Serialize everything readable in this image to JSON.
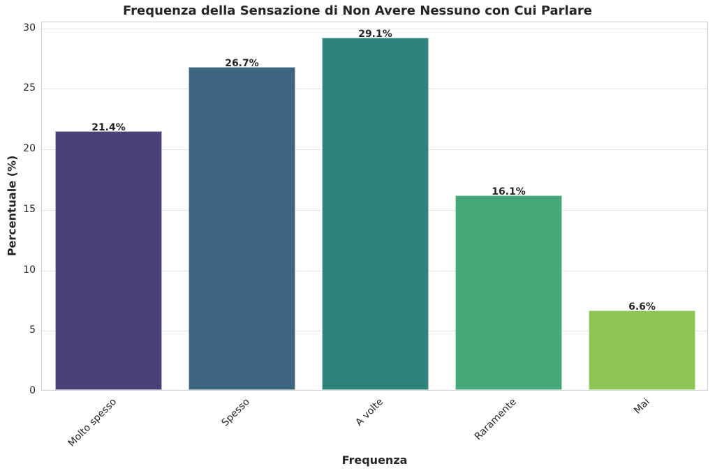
{
  "chart_data": {
    "type": "bar",
    "title": "Frequenza della Sensazione di Non Avere Nessuno con Cui Parlare",
    "xlabel": "Frequenza",
    "ylabel": "Percentuale (%)",
    "categories": [
      "Molto spesso",
      "Spesso",
      "A volte",
      "Raramente",
      "Mai"
    ],
    "values": [
      21.4,
      26.7,
      29.1,
      16.1,
      6.6
    ],
    "value_labels": [
      "21.4%",
      "26.7%",
      "29.1%",
      "16.1%",
      "6.6%"
    ],
    "colors": [
      "#4b3f78",
      "#3d657f",
      "#2e837c",
      "#46a878",
      "#8dc556"
    ],
    "yticks": [
      0,
      5,
      10,
      15,
      20,
      25,
      30
    ],
    "ylim": [
      0,
      30.5
    ],
    "grid": true,
    "legend": null,
    "xtick_rotation": 45
  }
}
